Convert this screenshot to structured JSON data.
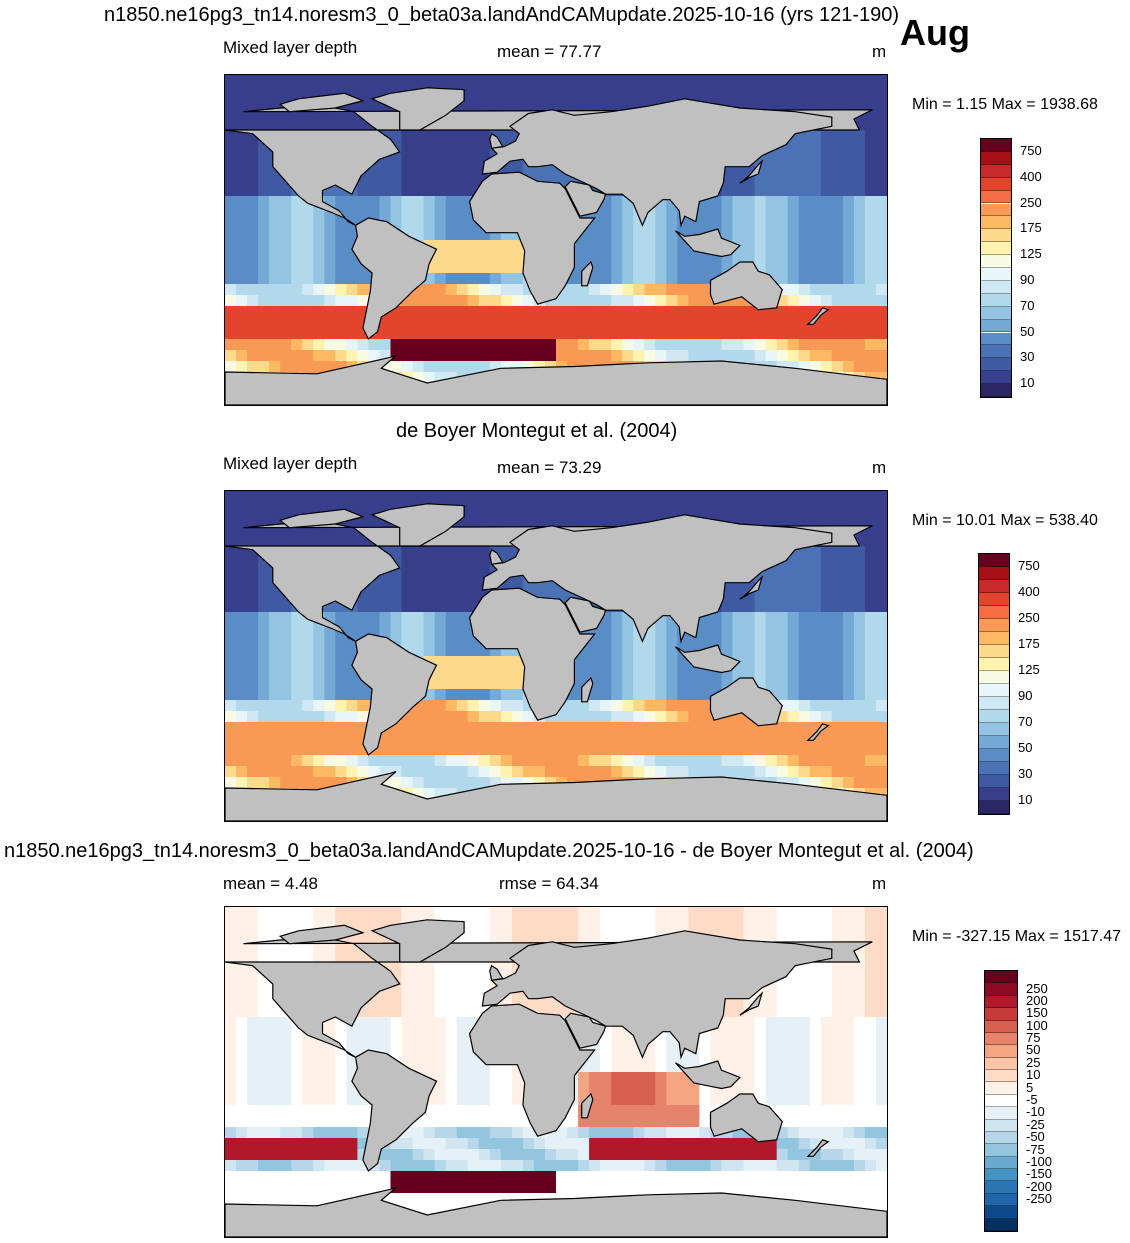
{
  "header": {
    "title": "n1850.ne16pg3_tn14.noresm3_0_beta03a.landAndCAMupdate.2025-10-16 (yrs 121-190)",
    "month": "Aug"
  },
  "panels": [
    {
      "id": "model",
      "var_label": "Mixed layer depth",
      "stat_text": "mean =  77.77",
      "units": "m",
      "minmax": "Min =    1.15 Max = 1938.68"
    },
    {
      "id": "obs",
      "title": "de Boyer Montegut et al. (2004)",
      "var_label": "Mixed layer depth",
      "stat_text": "mean =  73.29",
      "units": "m",
      "minmax": "Min =  10.01 Max = 538.40"
    },
    {
      "id": "diff",
      "title": "n1850.ne16pg3_tn14.noresm3_0_beta03a.landAndCAMupdate.2025-10-16 - de Boyer Montegut et al. (2004)",
      "stat_text": "mean =   4.48",
      "rmse_text": "rmse =  64.34",
      "units": "m",
      "minmax": "Min = -327.15 Max = 1517.47"
    }
  ],
  "colorbar_mld": {
    "labels": [
      "750",
      "400",
      "250",
      "175",
      "125",
      "90",
      "70",
      "50",
      "30",
      "10"
    ],
    "colors_top_to_bottom": [
      "#67001f",
      "#a50f15",
      "#c62a2a",
      "#e2452b",
      "#f46d43",
      "#f89a55",
      "#fdb863",
      "#fdd98b",
      "#fff3b0",
      "#f7fbe3",
      "#e8f5f9",
      "#cfe8f3",
      "#b2d8ec",
      "#94c4e2",
      "#74a9d6",
      "#5a8cc6",
      "#4a72b5",
      "#3f5aa3",
      "#373f8d",
      "#2c2566"
    ]
  },
  "colorbar_diff": {
    "labels": [
      "250",
      "200",
      "150",
      "100",
      "75",
      "50",
      "25",
      "10",
      "5",
      "-5",
      "-10",
      "-25",
      "-50",
      "-75",
      "-100",
      "-150",
      "-200",
      "-250"
    ],
    "colors_top_to_bottom": [
      "#67001f",
      "#8e0a25",
      "#b2182b",
      "#c63b3a",
      "#d6604d",
      "#e5846a",
      "#f4a582",
      "#f9c5a8",
      "#fddbc7",
      "#fff0e8",
      "#ffffff",
      "#e6f0f7",
      "#d1e5f0",
      "#b6d6e9",
      "#92c5de",
      "#6aa9d0",
      "#4393c3",
      "#2c74b3",
      "#2166ac",
      "#0d4a8c",
      "#053061"
    ]
  },
  "map_colors": {
    "land": "#c0c0c0",
    "outline": "#000000"
  }
}
